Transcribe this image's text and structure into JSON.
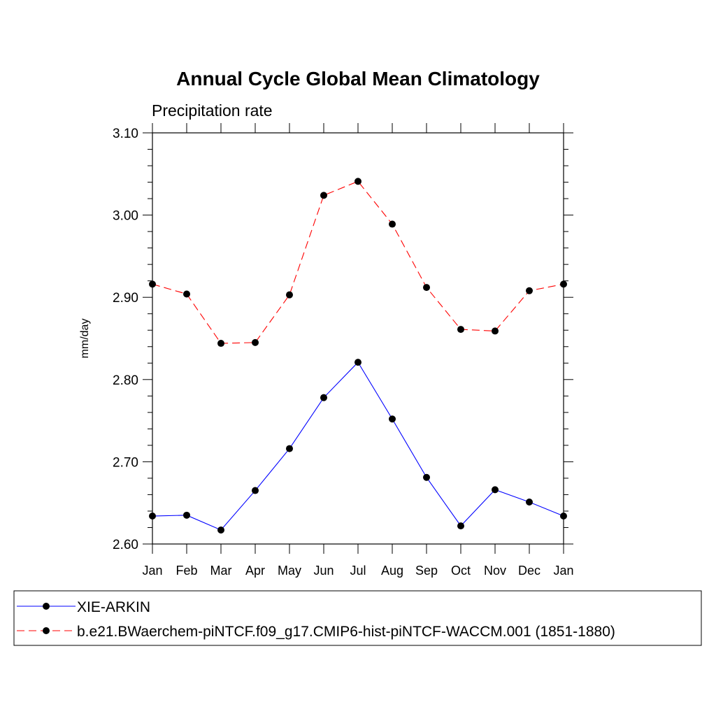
{
  "chart_data": {
    "type": "line",
    "title": "Annual Cycle Global Mean Climatology",
    "subtitle": "Precipitation rate",
    "xlabel": "",
    "ylabel": "mm/day",
    "categories": [
      "Jan",
      "Feb",
      "Mar",
      "Apr",
      "May",
      "Jun",
      "Jul",
      "Aug",
      "Sep",
      "Oct",
      "Nov",
      "Dec",
      "Jan"
    ],
    "ylim": [
      2.6,
      3.1
    ],
    "yticks": [
      2.6,
      2.7,
      2.8,
      2.9,
      3.0,
      3.1
    ],
    "ytick_labels": [
      "2.60",
      "2.70",
      "2.80",
      "2.90",
      "3.00",
      "3.10"
    ],
    "series": [
      {
        "name": "XIE-ARKIN",
        "color": "#0000ff",
        "dashed": false,
        "values": [
          2.634,
          2.635,
          2.617,
          2.665,
          2.716,
          2.778,
          2.821,
          2.752,
          2.681,
          2.622,
          2.666,
          2.651,
          2.634
        ]
      },
      {
        "name": "b.e21.BWaerchem-piNTCF.f09_g17.CMIP6-hist-piNTCF-WACCM.001 (1851-1880)",
        "color": "#ff0000",
        "dashed": true,
        "values": [
          2.916,
          2.904,
          2.844,
          2.845,
          2.903,
          3.024,
          3.041,
          2.989,
          2.912,
          2.861,
          2.859,
          2.908,
          2.916
        ]
      }
    ],
    "legend_placement": "bottom"
  }
}
